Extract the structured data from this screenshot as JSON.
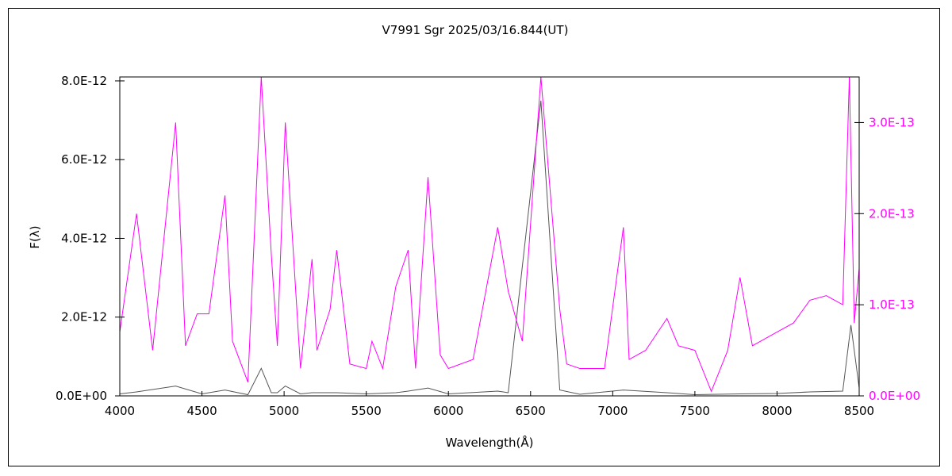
{
  "chart_data": {
    "type": "line",
    "title": "V7991 Sgr  2025/03/16.844(UT)",
    "xlabel": "Wavelength(Å)",
    "ylabel": "F(λ)",
    "xlim": [
      4000,
      8500
    ],
    "ylim_left": [
      0,
      8.1e-12
    ],
    "ylim_right": [
      0,
      3.5e-13
    ],
    "x_ticks": [
      "4000",
      "4500",
      "5000",
      "5500",
      "6000",
      "6500",
      "7000",
      "7500",
      "8000",
      "8500"
    ],
    "y_left_ticks": [
      "0.0E+00",
      "2.0E-12",
      "4.0E-12",
      "6.0E-12",
      "8.0E-12"
    ],
    "y_right_ticks": [
      "0.0E+00",
      "1.0E-13",
      "2.0E-13",
      "3.0E-13"
    ],
    "grid": false,
    "legend": "none",
    "colors": {
      "left_series": "#555555",
      "right_series": "#ff00ff",
      "frame": "#000000"
    },
    "series": [
      {
        "axis": "left",
        "color": "#555555",
        "x": [
          4000,
          4102,
          4340,
          4500,
          4640,
          4780,
          4861,
          4922,
          4959,
          5007,
          5100,
          5170,
          5320,
          5500,
          5680,
          5755,
          5876,
          6000,
          6300,
          6364,
          6563,
          6678,
          6800,
          7065,
          7330,
          7500,
          7775,
          8000,
          8200,
          8400,
          8450,
          8500
        ],
        "y": [
          5e-14,
          1e-13,
          2.5e-13,
          5e-14,
          1.5e-13,
          3e-14,
          7e-13,
          8e-14,
          8e-14,
          2.5e-13,
          5e-14,
          8e-14,
          8e-14,
          5e-14,
          8e-14,
          1.2e-13,
          2e-13,
          5e-14,
          1.2e-13,
          8e-14,
          7.5e-12,
          1.5e-13,
          4e-14,
          1.5e-13,
          8e-14,
          3e-14,
          5e-14,
          6e-14,
          1e-13,
          1.2e-13,
          1.8e-12,
          2e-13
        ]
      },
      {
        "axis": "right",
        "color": "#ff00ff",
        "x": [
          4000,
          4102,
          4200,
          4340,
          4400,
          4471,
          4542,
          4640,
          4686,
          4780,
          4861,
          4922,
          4959,
          5007,
          5100,
          5170,
          5200,
          5280,
          5320,
          5400,
          5500,
          5535,
          5600,
          5680,
          5755,
          5800,
          5876,
          5950,
          6000,
          6150,
          6300,
          6364,
          6450,
          6563,
          6678,
          6720,
          6800,
          6950,
          7065,
          7100,
          7200,
          7330,
          7400,
          7500,
          7600,
          7700,
          7775,
          7850,
          8000,
          8100,
          8200,
          8300,
          8400,
          8440,
          8470,
          8500
        ],
        "y": [
          7e-14,
          2e-13,
          5e-14,
          3e-13,
          5.5e-14,
          9e-14,
          9e-14,
          2.2e-13,
          6e-14,
          1.5e-14,
          3.5e-13,
          1.55e-13,
          5.5e-14,
          3e-13,
          3e-14,
          1.5e-13,
          5e-14,
          9.5e-14,
          1.6e-13,
          3.5e-14,
          3e-14,
          6e-14,
          3e-14,
          1.2e-13,
          1.6e-13,
          3e-14,
          2.4e-13,
          4.5e-14,
          3e-14,
          4e-14,
          1.85e-13,
          1.15e-13,
          6e-14,
          3.5e-13,
          9.5e-14,
          3.5e-14,
          3e-14,
          3e-14,
          1.85e-13,
          4e-14,
          5e-14,
          8.5e-14,
          5.5e-14,
          5e-14,
          5e-15,
          5e-14,
          1.3e-13,
          5.5e-14,
          7e-14,
          8e-14,
          1.05e-13,
          1.1e-13,
          1e-13,
          3.5e-13,
          8e-14,
          1.4e-13
        ]
      }
    ]
  }
}
